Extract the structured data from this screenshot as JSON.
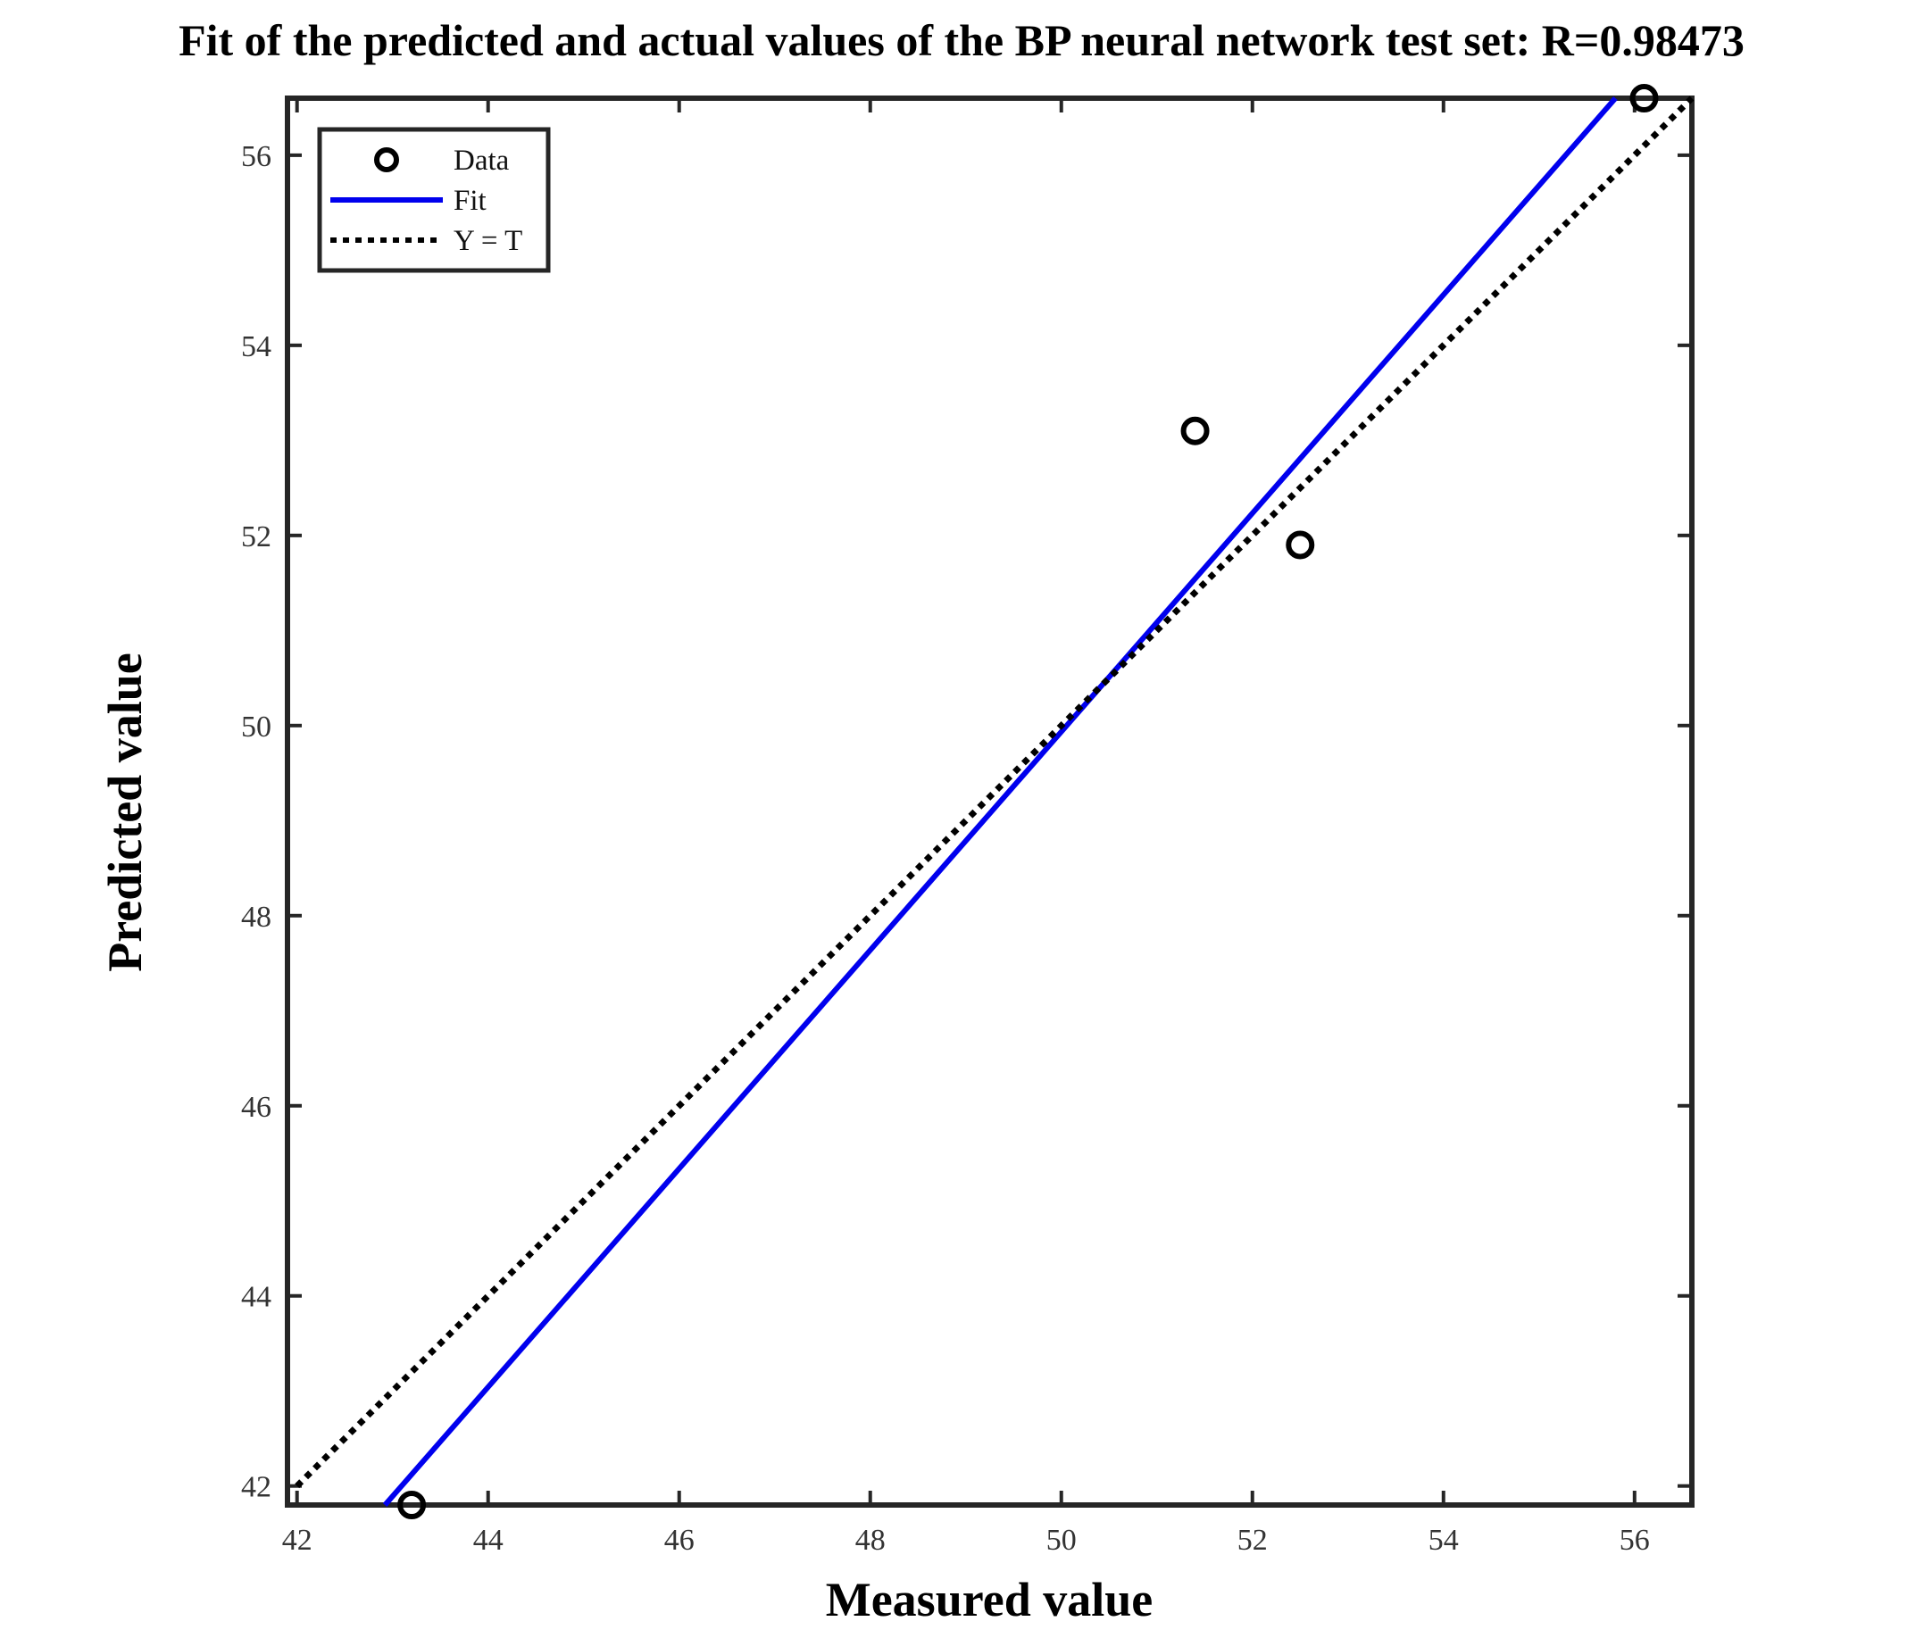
{
  "chart_data": {
    "type": "scatter",
    "title": "Fit of the predicted and actual values of the BP neural network test set: R=0.98473",
    "xlabel": "Measured value",
    "ylabel": "Predicted value",
    "xlim": [
      41.9,
      56.6
    ],
    "ylim": [
      41.8,
      56.6
    ],
    "xticks": [
      42,
      44,
      46,
      48,
      50,
      52,
      54,
      56
    ],
    "yticks": [
      42,
      44,
      46,
      48,
      50,
      52,
      54,
      56
    ],
    "grid": false,
    "legend_position": "top-left",
    "series": [
      {
        "name": "Data",
        "kind": "markers",
        "marker": "open-circle",
        "color": "#000000",
        "x": [
          43.2,
          51.4,
          52.5,
          56.1
        ],
        "y": [
          41.8,
          53.1,
          51.9,
          56.6
        ]
      },
      {
        "name": "Fit",
        "kind": "line",
        "style": "solid",
        "color": "#0000ee",
        "x": [
          42.92,
          55.8
        ],
        "y": [
          41.8,
          56.6
        ]
      },
      {
        "name": "Y = T",
        "kind": "line",
        "style": "dotted",
        "color": "#000000",
        "x": [
          42.0,
          56.6
        ],
        "y": [
          42.0,
          56.6
        ]
      }
    ]
  }
}
